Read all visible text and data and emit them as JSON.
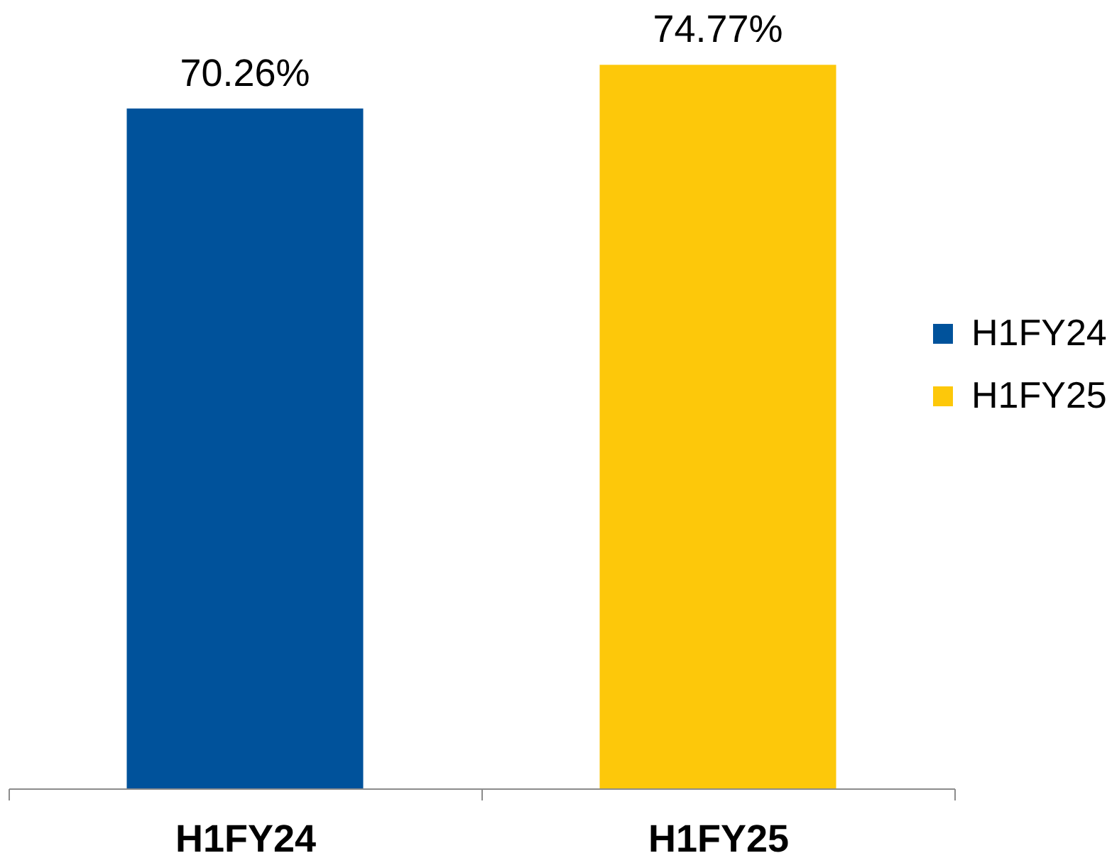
{
  "chart_data": {
    "type": "bar",
    "categories": [
      "H1FY24",
      "H1FY25"
    ],
    "series": [
      {
        "name": "H1FY24",
        "color": "#00529b",
        "values": [
          70.26,
          null
        ],
        "value_labels": [
          "70.26%",
          null
        ]
      },
      {
        "name": "H1FY25",
        "color": "#fdc80a",
        "values": [
          null,
          74.77
        ],
        "value_labels": [
          null,
          "74.77%"
        ]
      }
    ],
    "legend": "right"
  }
}
